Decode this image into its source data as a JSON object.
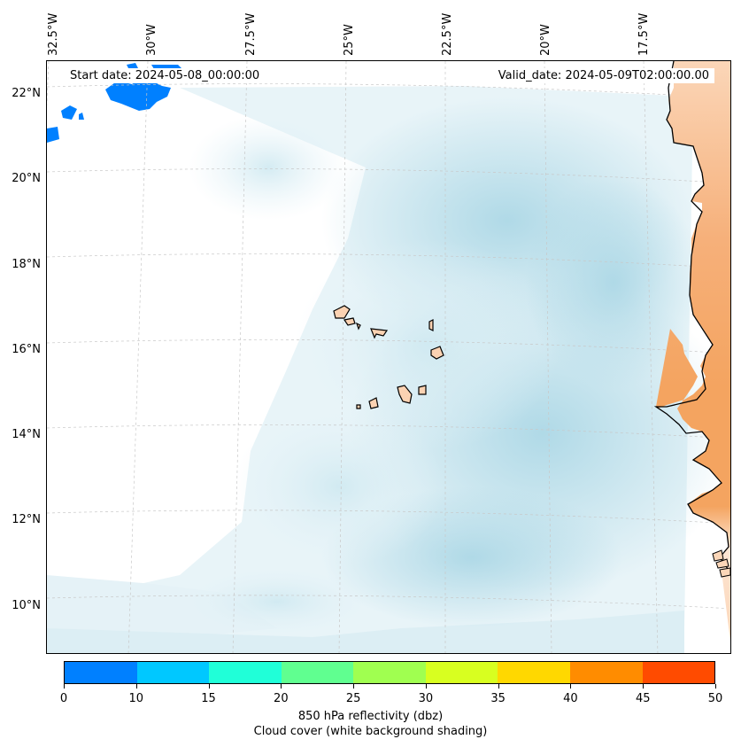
{
  "map": {
    "start_date": "Start date: 2024-05-08_00:00:00",
    "valid_date": "Valid_date: 2024-05-09T02:00:00.00",
    "longitude_labels": [
      "32.5°W",
      "30°W",
      "27.5°W",
      "25°W",
      "22.5°W",
      "20°W",
      "17.5°W"
    ],
    "latitude_labels": [
      "22°N",
      "20°N",
      "18°N",
      "16°N",
      "14°N",
      "12°N",
      "10°N"
    ],
    "land_color": "#f4a460",
    "cloud_color": "#add8e6"
  },
  "colorbar": {
    "ticks": [
      "0",
      "10",
      "15",
      "20",
      "25",
      "30",
      "35",
      "40",
      "45",
      "50"
    ],
    "colors": [
      "#0080ff",
      "#00c8ff",
      "#20ffd8",
      "#60ff90",
      "#a0ff50",
      "#d8ff20",
      "#ffd800",
      "#ff8c00",
      "#ff4b00"
    ],
    "label_line1": "850 hPa reflectivity (dbz)",
    "label_line2": "Cloud cover (white background shading)"
  }
}
